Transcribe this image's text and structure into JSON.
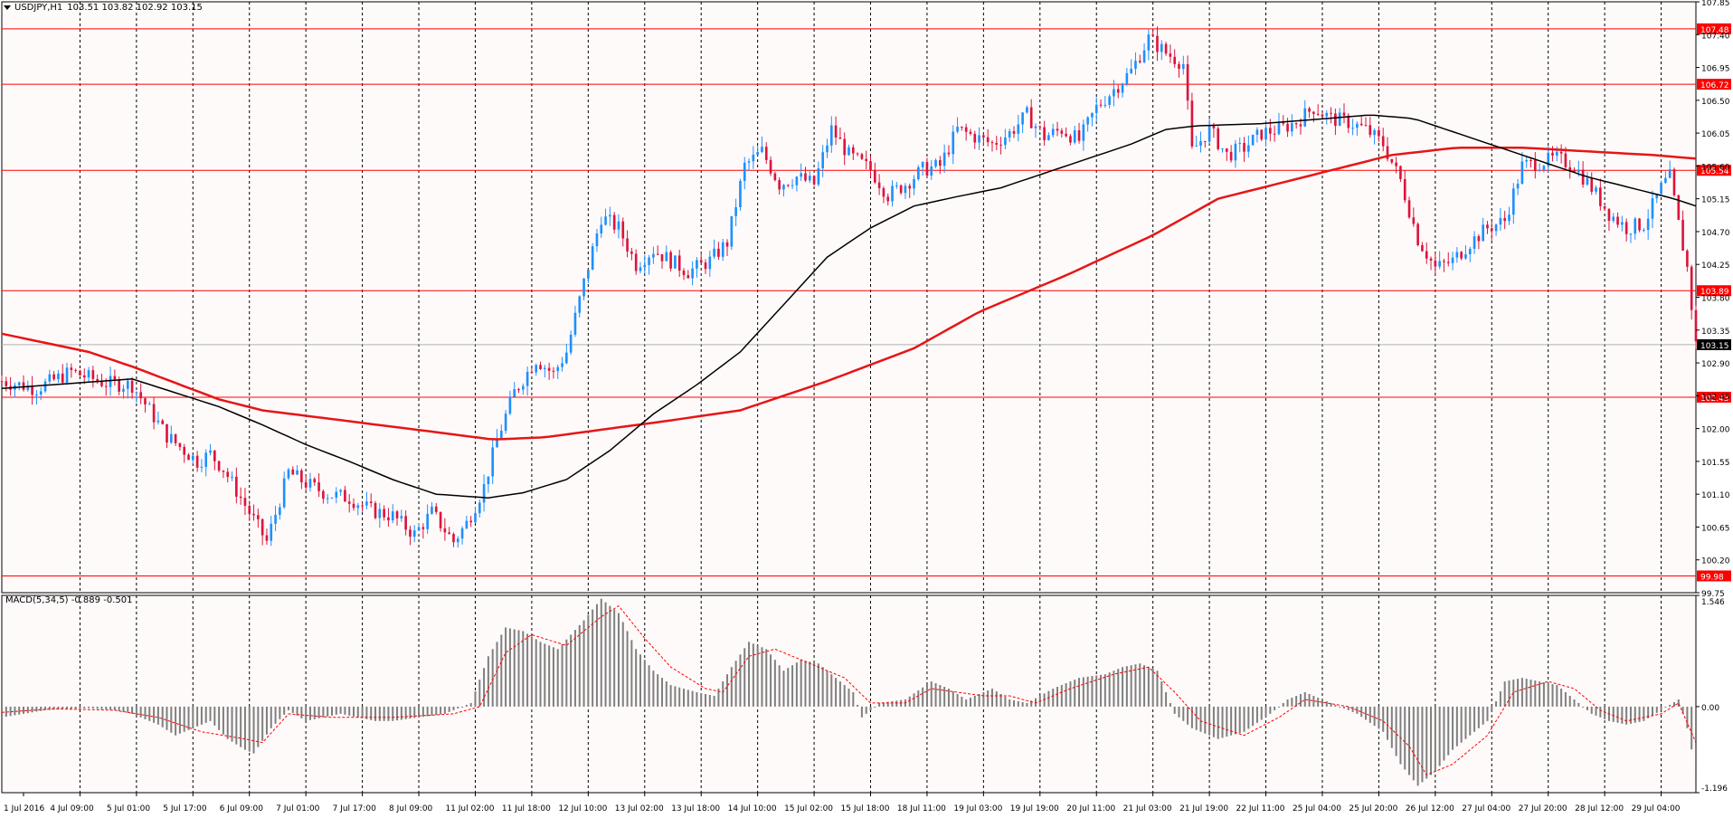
{
  "colors": {
    "background": "#ffffff",
    "plot_background": "#fffafa",
    "up_candle": "#1e90ff",
    "down_candle": "#dc143c",
    "resistance_line": "#ff0000",
    "ma_fast": "#000000",
    "ma_slow": "#e51616",
    "macd_bar": "#7f7f7f",
    "macd_signal": "#ff0000"
  },
  "header": {
    "menu_icon": "chevron-down-icon",
    "symbol": "USDJPY,H1",
    "open": "103.51",
    "high": "103.82",
    "low": "102.92",
    "close": "103.15"
  },
  "macd_header": {
    "label": "MACD(5,34,5)",
    "macd_value": "-0.889",
    "signal_value": "-0.501"
  },
  "chart_data": [
    {
      "type": "candlestick",
      "symbol": "USDJPY",
      "timeframe": "H1",
      "ylim": [
        99.75,
        107.85
      ],
      "y_ticks": [
        107.85,
        107.4,
        106.95,
        106.5,
        106.05,
        105.6,
        105.15,
        104.7,
        104.25,
        103.8,
        103.35,
        102.9,
        102.45,
        102.0,
        101.55,
        101.1,
        100.65,
        100.2,
        99.75
      ],
      "x_tick_labels": [
        "1 Jul 2016",
        "4 Jul 09:00",
        "5 Jul 01:00",
        "5 Jul 17:00",
        "6 Jul 09:00",
        "7 Jul 01:00",
        "7 Jul 17:00",
        "8 Jul 09:00",
        "11 Jul 02:00",
        "11 Jul 18:00",
        "12 Jul 10:00",
        "13 Jul 02:00",
        "13 Jul 18:00",
        "14 Jul 10:00",
        "15 Jul 02:00",
        "15 Jul 18:00",
        "18 Jul 11:00",
        "19 Jul 03:00",
        "19 Jul 19:00",
        "20 Jul 11:00",
        "21 Jul 03:00",
        "21 Jul 19:00",
        "22 Jul 11:00",
        "25 Jul 04:00",
        "25 Jul 20:00",
        "26 Jul 12:00",
        "27 Jul 04:00",
        "27 Jul 20:00",
        "28 Jul 12:00",
        "29 Jul 04:00"
      ],
      "grid": true,
      "price_path": [
        [
          0,
          102.65
        ],
        [
          8,
          102.55
        ],
        [
          16,
          102.78
        ],
        [
          24,
          102.62
        ],
        [
          30,
          102.6
        ],
        [
          34,
          102.25
        ],
        [
          38,
          101.9
        ],
        [
          42,
          101.7
        ],
        [
          45,
          101.55
        ],
        [
          48,
          101.65
        ],
        [
          51,
          101.45
        ],
        [
          56,
          100.95
        ],
        [
          61,
          100.45
        ],
        [
          66,
          101.4
        ],
        [
          70,
          101.25
        ],
        [
          75,
          101.1
        ],
        [
          80,
          101.05
        ],
        [
          85,
          100.88
        ],
        [
          90,
          100.8
        ],
        [
          95,
          100.55
        ],
        [
          99,
          100.85
        ],
        [
          104,
          100.45
        ],
        [
          107,
          100.7
        ],
        [
          111,
          101.2
        ],
        [
          114,
          101.85
        ],
        [
          118,
          102.5
        ],
        [
          123,
          102.95
        ],
        [
          127,
          102.75
        ],
        [
          130,
          103.05
        ],
        [
          134,
          104.0
        ],
        [
          138,
          104.9
        ],
        [
          142,
          104.75
        ],
        [
          146,
          104.25
        ],
        [
          150,
          104.45
        ],
        [
          154,
          104.3
        ],
        [
          158,
          104.15
        ],
        [
          163,
          104.3
        ],
        [
          167,
          104.55
        ],
        [
          171,
          105.6
        ],
        [
          175,
          105.8
        ],
        [
          179,
          105.35
        ],
        [
          183,
          105.45
        ],
        [
          187,
          105.35
        ],
        [
          191,
          106.1
        ],
        [
          195,
          105.75
        ],
        [
          200,
          105.55
        ],
        [
          204,
          105.2
        ],
        [
          208,
          105.35
        ],
        [
          212,
          105.55
        ],
        [
          216,
          105.6
        ],
        [
          220,
          106.1
        ],
        [
          224,
          106.0
        ],
        [
          228,
          105.9
        ],
        [
          232,
          106.05
        ],
        [
          236,
          106.3
        ],
        [
          240,
          106.0
        ],
        [
          244,
          106.1
        ],
        [
          248,
          105.95
        ],
        [
          252,
          106.4
        ],
        [
          256,
          106.65
        ],
        [
          260,
          106.9
        ],
        [
          264,
          107.35
        ],
        [
          268,
          107.15
        ],
        [
          272,
          107.0
        ],
        [
          274,
          105.8
        ],
        [
          278,
          106.1
        ],
        [
          282,
          105.75
        ],
        [
          286,
          105.85
        ],
        [
          290,
          106.05
        ],
        [
          294,
          106.1
        ],
        [
          298,
          106.2
        ],
        [
          302,
          106.4
        ],
        [
          306,
          106.25
        ],
        [
          310,
          106.2
        ],
        [
          314,
          106.1
        ],
        [
          318,
          105.9
        ],
        [
          322,
          105.4
        ],
        [
          326,
          104.6
        ],
        [
          330,
          104.2
        ],
        [
          334,
          104.3
        ],
        [
          338,
          104.55
        ],
        [
          342,
          104.75
        ],
        [
          346,
          104.85
        ],
        [
          350,
          105.6
        ],
        [
          354,
          105.65
        ],
        [
          358,
          105.7
        ],
        [
          362,
          105.6
        ],
        [
          366,
          105.3
        ],
        [
          370,
          104.95
        ],
        [
          374,
          104.75
        ],
        [
          378,
          104.8
        ],
        [
          382,
          105.3
        ],
        [
          384,
          105.45
        ],
        [
          386,
          104.8
        ],
        [
          388,
          104.2
        ],
        [
          390,
          103.15
        ]
      ],
      "ma_fast_path": [
        [
          0,
          102.55
        ],
        [
          30,
          102.68
        ],
        [
          50,
          102.3
        ],
        [
          60,
          102.05
        ],
        [
          70,
          101.78
        ],
        [
          80,
          101.55
        ],
        [
          90,
          101.3
        ],
        [
          100,
          101.1
        ],
        [
          112,
          101.05
        ],
        [
          120,
          101.12
        ],
        [
          130,
          101.3
        ],
        [
          140,
          101.7
        ],
        [
          150,
          102.2
        ],
        [
          160,
          102.6
        ],
        [
          170,
          103.05
        ],
        [
          180,
          103.7
        ],
        [
          190,
          104.35
        ],
        [
          200,
          104.75
        ],
        [
          210,
          105.05
        ],
        [
          220,
          105.18
        ],
        [
          230,
          105.3
        ],
        [
          240,
          105.5
        ],
        [
          250,
          105.7
        ],
        [
          260,
          105.9
        ],
        [
          268,
          106.1
        ],
        [
          275,
          106.15
        ],
        [
          290,
          106.18
        ],
        [
          305,
          106.25
        ],
        [
          315,
          106.3
        ],
        [
          325,
          106.25
        ],
        [
          335,
          106.05
        ],
        [
          345,
          105.85
        ],
        [
          355,
          105.65
        ],
        [
          365,
          105.45
        ],
        [
          375,
          105.3
        ],
        [
          385,
          105.15
        ],
        [
          390,
          105.05
        ]
      ],
      "ma_slow_path": [
        [
          0,
          103.3
        ],
        [
          20,
          103.05
        ],
        [
          30,
          102.85
        ],
        [
          50,
          102.4
        ],
        [
          60,
          102.25
        ],
        [
          80,
          102.1
        ],
        [
          100,
          101.95
        ],
        [
          113,
          101.85
        ],
        [
          125,
          101.88
        ],
        [
          140,
          102.0
        ],
        [
          155,
          102.12
        ],
        [
          170,
          102.25
        ],
        [
          190,
          102.65
        ],
        [
          210,
          103.1
        ],
        [
          225,
          103.6
        ],
        [
          245,
          104.1
        ],
        [
          265,
          104.65
        ],
        [
          280,
          105.15
        ],
        [
          300,
          105.45
        ],
        [
          320,
          105.75
        ],
        [
          335,
          105.85
        ],
        [
          350,
          105.85
        ],
        [
          365,
          105.8
        ],
        [
          380,
          105.75
        ],
        [
          390,
          105.7
        ]
      ],
      "horizontal_levels": [
        107.48,
        106.72,
        105.54,
        103.89,
        102.43,
        99.98
      ],
      "horizontal_level_labels": [
        "107.48",
        "106.72",
        "105.54",
        "103.89",
        "102.43",
        "99.98"
      ],
      "current_price": 103.15,
      "current_price_label": "103.15"
    },
    {
      "type": "bar",
      "name": "MACD(5,34,5)",
      "ylim": [
        -1.196,
        1.546
      ],
      "y_tick_labels": [
        "1.546",
        "0.00",
        "-1.196"
      ],
      "y_ticks": [
        1.546,
        0.0,
        -1.196
      ],
      "macd_path": [
        [
          0,
          -0.15
        ],
        [
          10,
          -0.05
        ],
        [
          20,
          -0.02
        ],
        [
          26,
          -0.05
        ],
        [
          30,
          -0.1
        ],
        [
          36,
          -0.25
        ],
        [
          40,
          -0.4
        ],
        [
          44,
          -0.3
        ],
        [
          48,
          -0.2
        ],
        [
          52,
          -0.45
        ],
        [
          56,
          -0.6
        ],
        [
          58,
          -0.65
        ],
        [
          62,
          -0.3
        ],
        [
          66,
          -0.05
        ],
        [
          70,
          -0.2
        ],
        [
          74,
          -0.15
        ],
        [
          78,
          -0.1
        ],
        [
          82,
          -0.15
        ],
        [
          86,
          -0.2
        ],
        [
          90,
          -0.2
        ],
        [
          96,
          -0.15
        ],
        [
          102,
          -0.1
        ],
        [
          108,
          0.05
        ],
        [
          112,
          0.7
        ],
        [
          116,
          1.1
        ],
        [
          120,
          1.05
        ],
        [
          124,
          0.9
        ],
        [
          128,
          0.8
        ],
        [
          134,
          1.2
        ],
        [
          138,
          1.5
        ],
        [
          142,
          1.3
        ],
        [
          146,
          0.8
        ],
        [
          150,
          0.5
        ],
        [
          154,
          0.3
        ],
        [
          160,
          0.2
        ],
        [
          164,
          0.15
        ],
        [
          168,
          0.55
        ],
        [
          172,
          0.9
        ],
        [
          176,
          0.8
        ],
        [
          180,
          0.5
        ],
        [
          184,
          0.65
        ],
        [
          188,
          0.6
        ],
        [
          192,
          0.4
        ],
        [
          196,
          0.2
        ],
        [
          198,
          -0.15
        ],
        [
          202,
          0.05
        ],
        [
          208,
          0.1
        ],
        [
          214,
          0.35
        ],
        [
          218,
          0.25
        ],
        [
          222,
          0.1
        ],
        [
          228,
          0.25
        ],
        [
          232,
          0.1
        ],
        [
          236,
          0.05
        ],
        [
          242,
          0.25
        ],
        [
          248,
          0.4
        ],
        [
          254,
          0.45
        ],
        [
          258,
          0.55
        ],
        [
          262,
          0.6
        ],
        [
          266,
          0.5
        ],
        [
          270,
          -0.1
        ],
        [
          274,
          -0.3
        ],
        [
          280,
          -0.45
        ],
        [
          286,
          -0.35
        ],
        [
          292,
          -0.1
        ],
        [
          296,
          0.1
        ],
        [
          300,
          0.2
        ],
        [
          306,
          0.05
        ],
        [
          312,
          -0.1
        ],
        [
          318,
          -0.35
        ],
        [
          322,
          -0.8
        ],
        [
          326,
          -1.1
        ],
        [
          330,
          -0.9
        ],
        [
          334,
          -0.6
        ],
        [
          338,
          -0.4
        ],
        [
          342,
          -0.2
        ],
        [
          346,
          0.35
        ],
        [
          350,
          0.4
        ],
        [
          354,
          0.35
        ],
        [
          358,
          0.3
        ],
        [
          362,
          0.1
        ],
        [
          366,
          -0.1
        ],
        [
          370,
          -0.2
        ],
        [
          374,
          -0.25
        ],
        [
          378,
          -0.2
        ],
        [
          382,
          -0.05
        ],
        [
          386,
          0.1
        ],
        [
          388,
          -0.3
        ],
        [
          390,
          -0.89
        ]
      ],
      "signal_path": [
        [
          0,
          -0.08
        ],
        [
          12,
          -0.03
        ],
        [
          26,
          -0.05
        ],
        [
          36,
          -0.15
        ],
        [
          46,
          -0.35
        ],
        [
          56,
          -0.45
        ],
        [
          60,
          -0.5
        ],
        [
          66,
          -0.1
        ],
        [
          76,
          -0.15
        ],
        [
          90,
          -0.15
        ],
        [
          104,
          -0.1
        ],
        [
          110,
          0.0
        ],
        [
          116,
          0.75
        ],
        [
          122,
          1.0
        ],
        [
          130,
          0.85
        ],
        [
          138,
          1.25
        ],
        [
          142,
          1.4
        ],
        [
          148,
          0.95
        ],
        [
          154,
          0.55
        ],
        [
          162,
          0.25
        ],
        [
          166,
          0.2
        ],
        [
          172,
          0.7
        ],
        [
          178,
          0.8
        ],
        [
          186,
          0.6
        ],
        [
          194,
          0.4
        ],
        [
          200,
          0.05
        ],
        [
          208,
          0.05
        ],
        [
          214,
          0.25
        ],
        [
          220,
          0.2
        ],
        [
          226,
          0.15
        ],
        [
          232,
          0.15
        ],
        [
          238,
          0.05
        ],
        [
          246,
          0.25
        ],
        [
          256,
          0.45
        ],
        [
          264,
          0.55
        ],
        [
          270,
          0.2
        ],
        [
          276,
          -0.2
        ],
        [
          286,
          -0.4
        ],
        [
          294,
          -0.15
        ],
        [
          300,
          0.1
        ],
        [
          310,
          0.0
        ],
        [
          318,
          -0.2
        ],
        [
          324,
          -0.55
        ],
        [
          328,
          -0.95
        ],
        [
          334,
          -0.8
        ],
        [
          342,
          -0.4
        ],
        [
          348,
          0.2
        ],
        [
          356,
          0.35
        ],
        [
          362,
          0.25
        ],
        [
          368,
          -0.05
        ],
        [
          374,
          -0.2
        ],
        [
          382,
          -0.1
        ],
        [
          386,
          0.05
        ],
        [
          390,
          -0.5
        ]
      ]
    }
  ]
}
